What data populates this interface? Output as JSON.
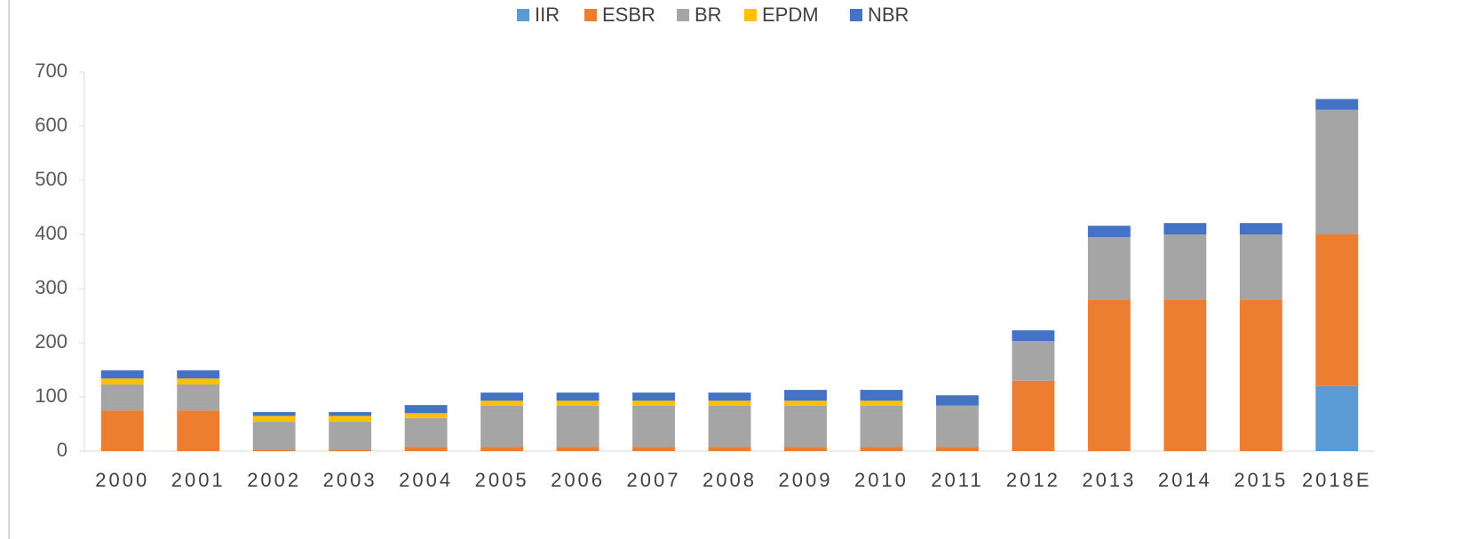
{
  "chart_data": {
    "type": "stacked_bar",
    "categories": [
      "2000",
      "2001",
      "2002",
      "2003",
      "2004",
      "2005",
      "2006",
      "2007",
      "2008",
      "2009",
      "2010",
      "2011",
      "2012",
      "2013",
      "2014",
      "2015",
      "2018E"
    ],
    "series": [
      {
        "name": "IIR",
        "color": "#5b9bd5",
        "values": [
          0,
          0,
          0,
          0,
          0,
          0,
          0,
          0,
          0,
          0,
          0,
          0,
          0,
          0,
          0,
          0,
          120
        ]
      },
      {
        "name": "ESBR",
        "color": "#ed7d31",
        "values": [
          75,
          75,
          3,
          3,
          8,
          8,
          8,
          8,
          8,
          8,
          8,
          8,
          130,
          280,
          280,
          280,
          280
        ]
      },
      {
        "name": "BR",
        "color": "#a5a5a5",
        "values": [
          48,
          48,
          51,
          51,
          53,
          76,
          76,
          76,
          76,
          76,
          76,
          76,
          73,
          115,
          120,
          120,
          230
        ]
      },
      {
        "name": "EPDM",
        "color": "#ffc000",
        "values": [
          11,
          11,
          11,
          11,
          9,
          9,
          9,
          9,
          9,
          9,
          9,
          0,
          0,
          0,
          0,
          0,
          0
        ]
      },
      {
        "name": "NBR",
        "color": "#4472c4",
        "values": [
          15,
          15,
          7,
          7,
          15,
          15,
          15,
          15,
          15,
          20,
          20,
          19,
          20,
          21,
          21,
          21,
          20
        ]
      }
    ],
    "ylim": [
      0,
      700
    ],
    "yticks": [
      0,
      100,
      200,
      300,
      400,
      500,
      600,
      700
    ],
    "legend": "top"
  }
}
